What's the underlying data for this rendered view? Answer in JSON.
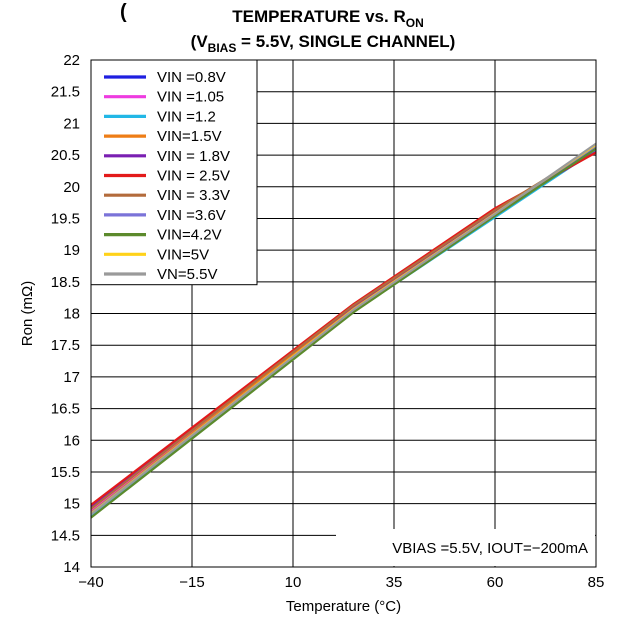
{
  "chart_data": {
    "type": "line",
    "title_partial": "(",
    "title_line1": {
      "main": "TEMPERATURE vs. R",
      "sub": "ON"
    },
    "title_line2": {
      "open": "(V",
      "sub": "BIAS",
      "rest": " = 5.5V, SINGLE CHANNEL)"
    },
    "xlabel": "Temperature (°C)",
    "ylabel": "Ron (mΩ)",
    "xlim": [
      -40,
      85
    ],
    "ylim": [
      14,
      22
    ],
    "x_ticks": [
      -40,
      -15,
      10,
      35,
      60,
      85
    ],
    "x_tick_labels": [
      "−40",
      "−15",
      "10",
      "35",
      "60",
      "85"
    ],
    "y_ticks": [
      14,
      14.5,
      15,
      15.5,
      16,
      16.5,
      17,
      17.5,
      18,
      18.5,
      19,
      19.5,
      20,
      20.5,
      21,
      21.5,
      22
    ],
    "y_tick_labels": [
      "14",
      "14.5",
      "15",
      "15.5",
      "16",
      "16.5",
      "17",
      "17.5",
      "18",
      "18.5",
      "19",
      "19.5",
      "20",
      "20.5",
      "21",
      "21.5",
      "22"
    ],
    "grid": true,
    "legend_position": "top-left",
    "annotation": "VBIAS =5.5V, IOUT=−200mA",
    "x": [
      -40,
      25,
      60,
      85
    ],
    "series": [
      {
        "name": "VIN =0.8V",
        "color": "#1f1fe0",
        "values": [
          14.88,
          18.08,
          19.58,
          20.6
        ]
      },
      {
        "name": "VIN =1.05",
        "color": "#ee3ce0",
        "values": [
          14.9,
          18.1,
          19.6,
          20.62
        ]
      },
      {
        "name": "VIN =1.2",
        "color": "#22b7e6",
        "values": [
          14.8,
          18.03,
          19.52,
          20.58
        ]
      },
      {
        "name": "VIN=1.5V",
        "color": "#ee7d16",
        "values": [
          14.86,
          18.1,
          19.6,
          20.64
        ]
      },
      {
        "name": "VIN = 1.8V",
        "color": "#7a1fb2",
        "values": [
          14.95,
          18.12,
          19.62,
          20.55
        ]
      },
      {
        "name": "VIN = 2.5V",
        "color": "#e31a1a",
        "values": [
          14.98,
          18.15,
          19.66,
          20.54
        ]
      },
      {
        "name": "VIN = 3.3V",
        "color": "#b36b3c",
        "values": [
          14.92,
          18.13,
          19.63,
          20.62
        ]
      },
      {
        "name": "VIN =3.6V",
        "color": "#7b73d8",
        "values": [
          14.85,
          18.06,
          19.55,
          20.64
        ]
      },
      {
        "name": "VIN=4.2V",
        "color": "#5c8a2c",
        "values": [
          14.78,
          18.02,
          19.54,
          20.6
        ]
      },
      {
        "name": "VIN=5V",
        "color": "#ffd21a",
        "values": [
          14.84,
          18.07,
          19.58,
          20.66
        ]
      },
      {
        "name": "VN=5.5V",
        "color": "#9a9a9a",
        "values": [
          14.83,
          18.06,
          19.57,
          20.68
        ]
      }
    ]
  }
}
